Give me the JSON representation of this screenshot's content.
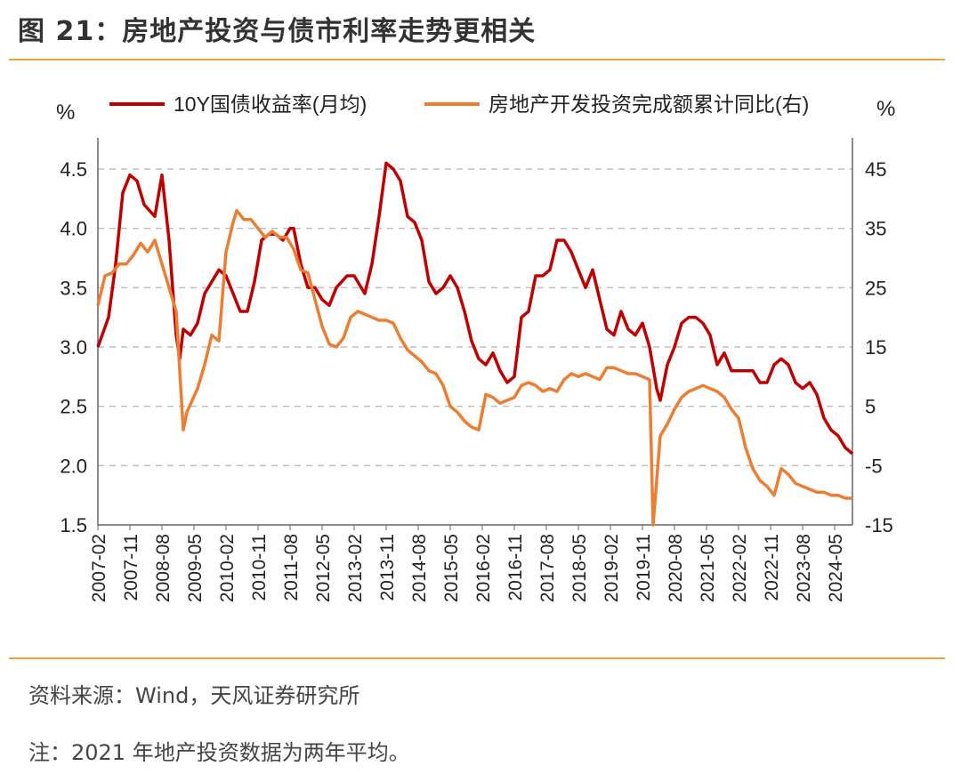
{
  "header": {
    "title": "图 21：房地产投资与债市利率走势更相关"
  },
  "footer": {
    "source": "资料来源：Wind，天风证券研究所",
    "note": "注：2021 年地产投资数据为两年平均。"
  },
  "colors": {
    "accent": "#e8a33d",
    "series_red": "#c00000",
    "series_orange": "#ed7d31",
    "grid": "#bfbfbf"
  },
  "chart_data": {
    "type": "line",
    "title": "",
    "y_left": {
      "unit": "%",
      "ylim": [
        1.5,
        4.5
      ],
      "ticks": [
        "1.5",
        "2.0",
        "2.5",
        "3.0",
        "3.5",
        "4.0",
        "4.5"
      ]
    },
    "y_right": {
      "unit": "%",
      "ylim": [
        -15,
        45
      ],
      "ticks": [
        "-15",
        "-5",
        "5",
        "15",
        "25",
        "35",
        "45"
      ]
    },
    "x": {
      "range": [
        "2007-02",
        "2024-10"
      ],
      "ticks": [
        "2007-02",
        "2007-11",
        "2008-08",
        "2009-05",
        "2010-02",
        "2010-11",
        "2011-08",
        "2012-05",
        "2013-02",
        "2013-11",
        "2014-08",
        "2015-05",
        "2016-02",
        "2016-11",
        "2017-08",
        "2018-05",
        "2019-02",
        "2019-11",
        "2020-08",
        "2021-05",
        "2022-02",
        "2022-11",
        "2023-08",
        "2024-05"
      ]
    },
    "grid": "horizontal dashed",
    "legend": "top",
    "series": [
      {
        "name": "10Y国债收益率(月均)",
        "axis": "left",
        "color": "#c00000",
        "points": [
          [
            "2007-02",
            3.0
          ],
          [
            "2007-05",
            3.25
          ],
          [
            "2007-07",
            3.7
          ],
          [
            "2007-09",
            4.3
          ],
          [
            "2007-11",
            4.45
          ],
          [
            "2008-01",
            4.4
          ],
          [
            "2008-03",
            4.2
          ],
          [
            "2008-06",
            4.1
          ],
          [
            "2008-08",
            4.45
          ],
          [
            "2008-10",
            3.9
          ],
          [
            "2008-12",
            3.1
          ],
          [
            "2009-01",
            2.9
          ],
          [
            "2009-02",
            3.15
          ],
          [
            "2009-04",
            3.1
          ],
          [
            "2009-06",
            3.2
          ],
          [
            "2009-08",
            3.45
          ],
          [
            "2009-10",
            3.55
          ],
          [
            "2009-12",
            3.65
          ],
          [
            "2010-02",
            3.6
          ],
          [
            "2010-04",
            3.45
          ],
          [
            "2010-06",
            3.3
          ],
          [
            "2010-08",
            3.3
          ],
          [
            "2010-10",
            3.55
          ],
          [
            "2010-12",
            3.9
          ],
          [
            "2011-02",
            3.95
          ],
          [
            "2011-04",
            3.95
          ],
          [
            "2011-06",
            3.9
          ],
          [
            "2011-08",
            4.0
          ],
          [
            "2011-09",
            4.0
          ],
          [
            "2011-11",
            3.7
          ],
          [
            "2012-01",
            3.5
          ],
          [
            "2012-03",
            3.5
          ],
          [
            "2012-05",
            3.4
          ],
          [
            "2012-07",
            3.35
          ],
          [
            "2012-09",
            3.5
          ],
          [
            "2012-12",
            3.6
          ],
          [
            "2013-02",
            3.6
          ],
          [
            "2013-05",
            3.45
          ],
          [
            "2013-07",
            3.7
          ],
          [
            "2013-09",
            4.1
          ],
          [
            "2013-11",
            4.55
          ],
          [
            "2014-01",
            4.5
          ],
          [
            "2014-03",
            4.4
          ],
          [
            "2014-05",
            4.1
          ],
          [
            "2014-07",
            4.05
          ],
          [
            "2014-09",
            3.9
          ],
          [
            "2014-11",
            3.55
          ],
          [
            "2015-01",
            3.45
          ],
          [
            "2015-03",
            3.5
          ],
          [
            "2015-05",
            3.6
          ],
          [
            "2015-07",
            3.5
          ],
          [
            "2015-09",
            3.3
          ],
          [
            "2015-11",
            3.05
          ],
          [
            "2016-01",
            2.9
          ],
          [
            "2016-03",
            2.85
          ],
          [
            "2016-05",
            2.95
          ],
          [
            "2016-07",
            2.8
          ],
          [
            "2016-09",
            2.7
          ],
          [
            "2016-11",
            2.75
          ],
          [
            "2017-01",
            3.25
          ],
          [
            "2017-03",
            3.3
          ],
          [
            "2017-05",
            3.6
          ],
          [
            "2017-07",
            3.6
          ],
          [
            "2017-09",
            3.65
          ],
          [
            "2017-11",
            3.9
          ],
          [
            "2018-01",
            3.9
          ],
          [
            "2018-03",
            3.8
          ],
          [
            "2018-05",
            3.65
          ],
          [
            "2018-07",
            3.5
          ],
          [
            "2018-09",
            3.65
          ],
          [
            "2018-11",
            3.4
          ],
          [
            "2019-01",
            3.15
          ],
          [
            "2019-03",
            3.1
          ],
          [
            "2019-05",
            3.3
          ],
          [
            "2019-07",
            3.15
          ],
          [
            "2019-09",
            3.1
          ],
          [
            "2019-11",
            3.2
          ],
          [
            "2020-01",
            3.0
          ],
          [
            "2020-03",
            2.65
          ],
          [
            "2020-04",
            2.55
          ],
          [
            "2020-06",
            2.85
          ],
          [
            "2020-08",
            3.0
          ],
          [
            "2020-10",
            3.2
          ],
          [
            "2020-12",
            3.25
          ],
          [
            "2021-02",
            3.25
          ],
          [
            "2021-04",
            3.2
          ],
          [
            "2021-06",
            3.1
          ],
          [
            "2021-08",
            2.85
          ],
          [
            "2021-10",
            2.95
          ],
          [
            "2021-12",
            2.8
          ],
          [
            "2022-02",
            2.8
          ],
          [
            "2022-04",
            2.8
          ],
          [
            "2022-06",
            2.8
          ],
          [
            "2022-08",
            2.7
          ],
          [
            "2022-10",
            2.7
          ],
          [
            "2022-12",
            2.85
          ],
          [
            "2023-02",
            2.9
          ],
          [
            "2023-04",
            2.85
          ],
          [
            "2023-06",
            2.7
          ],
          [
            "2023-08",
            2.65
          ],
          [
            "2023-10",
            2.7
          ],
          [
            "2023-12",
            2.6
          ],
          [
            "2024-02",
            2.4
          ],
          [
            "2024-04",
            2.3
          ],
          [
            "2024-06",
            2.25
          ],
          [
            "2024-08",
            2.15
          ],
          [
            "2024-10",
            2.1
          ]
        ]
      },
      {
        "name": "房地产开发投资完成额累计同比(右)",
        "axis": "right",
        "color": "#ed7d31",
        "points": [
          [
            "2007-02",
            22
          ],
          [
            "2007-04",
            27
          ],
          [
            "2007-06",
            27.5
          ],
          [
            "2007-08",
            29
          ],
          [
            "2007-10",
            29
          ],
          [
            "2007-12",
            30.5
          ],
          [
            "2008-02",
            32.5
          ],
          [
            "2008-04",
            31
          ],
          [
            "2008-06",
            33
          ],
          [
            "2008-08",
            29
          ],
          [
            "2008-10",
            25
          ],
          [
            "2008-12",
            21
          ],
          [
            "2009-02",
            1
          ],
          [
            "2009-03",
            4
          ],
          [
            "2009-06",
            8
          ],
          [
            "2009-08",
            12
          ],
          [
            "2009-10",
            17
          ],
          [
            "2009-12",
            16
          ],
          [
            "2010-02",
            31
          ],
          [
            "2010-04",
            36
          ],
          [
            "2010-05",
            38
          ],
          [
            "2010-07",
            36.5
          ],
          [
            "2010-09",
            36.5
          ],
          [
            "2010-11",
            35
          ],
          [
            "2011-01",
            33.5
          ],
          [
            "2011-03",
            34.5
          ],
          [
            "2011-05",
            33.5
          ],
          [
            "2011-07",
            33.5
          ],
          [
            "2011-09",
            31.5
          ],
          [
            "2011-11",
            28
          ],
          [
            "2012-01",
            27.5
          ],
          [
            "2012-03",
            23
          ],
          [
            "2012-05",
            18.5
          ],
          [
            "2012-07",
            15.5
          ],
          [
            "2012-09",
            15
          ],
          [
            "2012-11",
            16.5
          ],
          [
            "2013-01",
            20
          ],
          [
            "2013-03",
            21
          ],
          [
            "2013-05",
            20.5
          ],
          [
            "2013-07",
            20
          ],
          [
            "2013-09",
            19.5
          ],
          [
            "2013-11",
            19.5
          ],
          [
            "2014-01",
            19
          ],
          [
            "2014-03",
            16.5
          ],
          [
            "2014-05",
            14.5
          ],
          [
            "2014-07",
            13.5
          ],
          [
            "2014-09",
            12.5
          ],
          [
            "2014-11",
            11
          ],
          [
            "2015-01",
            10.5
          ],
          [
            "2015-03",
            8.5
          ],
          [
            "2015-05",
            5
          ],
          [
            "2015-07",
            4
          ],
          [
            "2015-09",
            2.5
          ],
          [
            "2015-11",
            1.5
          ],
          [
            "2016-01",
            1
          ],
          [
            "2016-03",
            7
          ],
          [
            "2016-05",
            6.5
          ],
          [
            "2016-07",
            5.5
          ],
          [
            "2016-09",
            6
          ],
          [
            "2016-11",
            6.5
          ],
          [
            "2017-01",
            8.5
          ],
          [
            "2017-03",
            9
          ],
          [
            "2017-05",
            8.5
          ],
          [
            "2017-07",
            7.5
          ],
          [
            "2017-09",
            8
          ],
          [
            "2017-11",
            7.5
          ],
          [
            "2018-01",
            9.5
          ],
          [
            "2018-03",
            10.5
          ],
          [
            "2018-05",
            10
          ],
          [
            "2018-07",
            10.5
          ],
          [
            "2018-09",
            10
          ],
          [
            "2018-11",
            9.5
          ],
          [
            "2019-01",
            11.5
          ],
          [
            "2019-03",
            11.5
          ],
          [
            "2019-05",
            11
          ],
          [
            "2019-07",
            10.5
          ],
          [
            "2019-09",
            10.5
          ],
          [
            "2019-11",
            10
          ],
          [
            "2020-01",
            9.5
          ],
          [
            "2020-02",
            -15
          ],
          [
            "2020-04",
            0
          ],
          [
            "2020-06",
            2
          ],
          [
            "2020-08",
            4.5
          ],
          [
            "2020-10",
            6.5
          ],
          [
            "2020-12",
            7.5
          ],
          [
            "2021-02",
            8
          ],
          [
            "2021-04",
            8.5
          ],
          [
            "2021-06",
            8
          ],
          [
            "2021-08",
            7.5
          ],
          [
            "2021-10",
            6.5
          ],
          [
            "2021-12",
            4.5
          ],
          [
            "2022-02",
            3
          ],
          [
            "2022-04",
            -2
          ],
          [
            "2022-06",
            -5.5
          ],
          [
            "2022-08",
            -7.5
          ],
          [
            "2022-10",
            -8.5
          ],
          [
            "2022-12",
            -10
          ],
          [
            "2023-02",
            -5.5
          ],
          [
            "2023-04",
            -6.5
          ],
          [
            "2023-06",
            -8
          ],
          [
            "2023-08",
            -8.5
          ],
          [
            "2023-10",
            -9
          ],
          [
            "2023-12",
            -9.5
          ],
          [
            "2024-02",
            -9.5
          ],
          [
            "2024-04",
            -10
          ],
          [
            "2024-06",
            -10
          ],
          [
            "2024-08",
            -10.5
          ],
          [
            "2024-10",
            -10.5
          ]
        ]
      }
    ]
  }
}
